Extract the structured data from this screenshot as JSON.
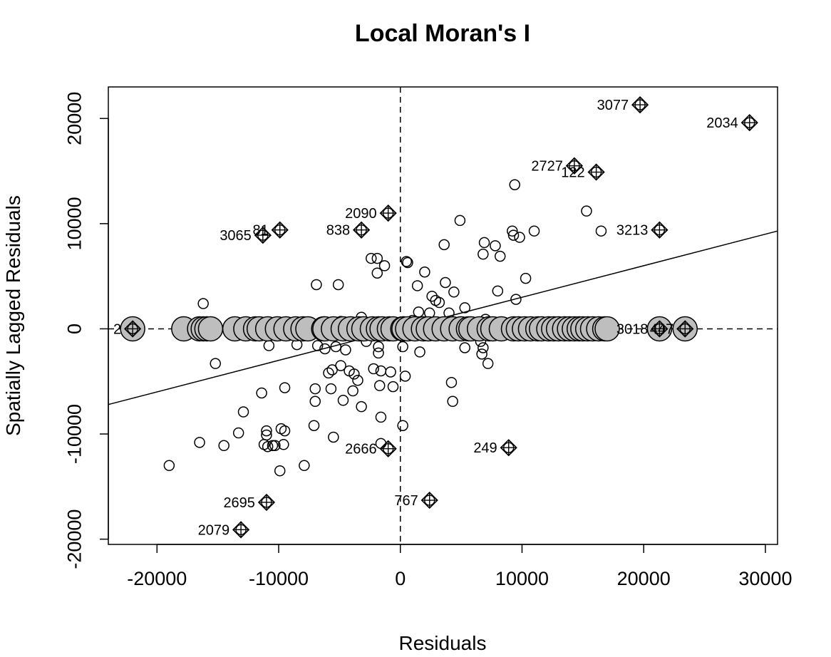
{
  "chart_data": {
    "type": "scatter",
    "title": "Local Moran's I",
    "xlabel": "Residuals",
    "ylabel": "Spatially Lagged Residuals",
    "xlim": [
      -24000,
      31000
    ],
    "ylim": [
      -20500,
      23000
    ],
    "x_ticks": [
      -20000,
      -10000,
      0,
      10000,
      20000,
      30000
    ],
    "x_tick_labels": [
      "-20000",
      "-10000",
      "0",
      "10000",
      "20000",
      "30000"
    ],
    "y_ticks": [
      -20000,
      -10000,
      0,
      10000,
      20000
    ],
    "y_tick_labels": [
      "-20000",
      "-10000",
      "0",
      "10000",
      "20000"
    ],
    "reference_lines": {
      "vertical_x": 0,
      "horizontal_y": 0,
      "style": "dashed"
    },
    "regression_line": {
      "intercept": 0,
      "slope": 0.3
    },
    "grid": false,
    "series": [
      {
        "marker": "open-circle",
        "points": [
          [
            -19000,
            -13000
          ],
          [
            -16500,
            -10800
          ],
          [
            -14500,
            -11100
          ],
          [
            -13300,
            -9900
          ],
          [
            -12900,
            -7900
          ],
          [
            -11400,
            -6100
          ],
          [
            -11200,
            -11000
          ],
          [
            -11000,
            -9700
          ],
          [
            -11000,
            -10100
          ],
          [
            -10900,
            -11200
          ],
          [
            -10500,
            -11100
          ],
          [
            -10300,
            -11100
          ],
          [
            -9900,
            -13500
          ],
          [
            -9800,
            -9500
          ],
          [
            -9600,
            -11000
          ],
          [
            -9500,
            -9700
          ],
          [
            -9500,
            -5600
          ],
          [
            -7900,
            -13000
          ],
          [
            -7100,
            -9200
          ],
          [
            -7000,
            -6900
          ],
          [
            -7000,
            -5700
          ],
          [
            -6800,
            -1600
          ],
          [
            -6900,
            4200
          ],
          [
            -5900,
            -4200
          ],
          [
            -5700,
            -5700
          ],
          [
            -5600,
            -3900
          ],
          [
            -5500,
            -10300
          ],
          [
            -5300,
            -1700
          ],
          [
            -5100,
            4200
          ],
          [
            -4900,
            -3500
          ],
          [
            -4700,
            -6800
          ],
          [
            -4500,
            -2000
          ],
          [
            -4200,
            -4000
          ],
          [
            -3900,
            -5900
          ],
          [
            -3800,
            -4300
          ],
          [
            -3500,
            -4900
          ],
          [
            -3200,
            -7400
          ],
          [
            -2800,
            -1200
          ],
          [
            -2400,
            6700
          ],
          [
            -2200,
            -3800
          ],
          [
            -1900,
            6700
          ],
          [
            -1900,
            5300
          ],
          [
            -1800,
            -2300
          ],
          [
            -1800,
            -1700
          ],
          [
            -1700,
            -5400
          ],
          [
            -1600,
            -4000
          ],
          [
            -1600,
            -8400
          ],
          [
            -1600,
            -10900
          ],
          [
            -1300,
            6000
          ],
          [
            -800,
            -4100
          ],
          [
            -600,
            -5500
          ],
          [
            200,
            -1700
          ],
          [
            200,
            -9200
          ],
          [
            400,
            -4500
          ],
          [
            500,
            6400
          ],
          [
            600,
            6300
          ],
          [
            1400,
            4100
          ],
          [
            1500,
            1600
          ],
          [
            1600,
            -2200
          ],
          [
            2000,
            5400
          ],
          [
            2400,
            1500
          ],
          [
            2600,
            3100
          ],
          [
            2900,
            2700
          ],
          [
            3200,
            2500
          ],
          [
            3600,
            8000
          ],
          [
            3700,
            4400
          ],
          [
            4000,
            1500
          ],
          [
            4200,
            -5100
          ],
          [
            4300,
            -6900
          ],
          [
            4400,
            3500
          ],
          [
            4900,
            10300
          ],
          [
            5300,
            2000
          ],
          [
            5300,
            -1800
          ],
          [
            6600,
            -1200
          ],
          [
            6700,
            -2400
          ],
          [
            6800,
            -1800
          ],
          [
            6800,
            7100
          ],
          [
            6900,
            8200
          ],
          [
            7200,
            -3300
          ],
          [
            7800,
            7900
          ],
          [
            8000,
            3600
          ],
          [
            8200,
            6900
          ],
          [
            9200,
            9300
          ],
          [
            9300,
            8900
          ],
          [
            9400,
            13700
          ],
          [
            9500,
            2800
          ],
          [
            9800,
            8700
          ],
          [
            10300,
            4800
          ],
          [
            11000,
            9300
          ],
          [
            15300,
            11200
          ],
          [
            16500,
            9300
          ],
          [
            -16200,
            2400
          ],
          [
            -15200,
            -3300
          ],
          [
            -10800,
            -1600
          ],
          [
            -8500,
            -1500
          ],
          [
            -6200,
            -1900
          ],
          [
            -4900,
            700
          ],
          [
            -3200,
            1100
          ],
          [
            -2000,
            400
          ],
          [
            -600,
            -300
          ],
          [
            1000,
            800
          ],
          [
            3500,
            600
          ],
          [
            6400,
            -200
          ],
          [
            7000,
            900
          ],
          [
            8000,
            -300
          ]
        ]
      },
      {
        "marker": "filled-large-circle",
        "y": 0,
        "x": [
          -22000,
          -17800,
          -16500,
          -16200,
          -15900,
          -15600,
          -13600,
          -12700,
          -11900,
          -11600,
          -10900,
          -10100,
          -9400,
          -8600,
          -8000,
          -7600,
          -6300,
          -6200,
          -5500,
          -4700,
          -4100,
          -3400,
          -3000,
          -2300,
          -1800,
          -1500,
          -900,
          -600,
          200,
          300,
          600,
          1200,
          1900,
          2300,
          2900,
          3600,
          4300,
          5000,
          5600,
          5800,
          6500,
          7300,
          7600,
          8300,
          9300,
          9700,
          10200,
          10700,
          11300,
          11600,
          12200,
          12600,
          13000,
          13500,
          13900,
          14300,
          14700,
          15000,
          15400,
          15800,
          16300,
          16800,
          17000,
          21300,
          23400
        ]
      },
      {
        "marker": "influential-diamond",
        "points": [
          [
            19700,
            21300,
            "3077"
          ],
          [
            28700,
            19600,
            "2034"
          ],
          [
            14300,
            15500,
            "2727"
          ],
          [
            16100,
            14900,
            "122"
          ],
          [
            -1000,
            11000,
            "2090"
          ],
          [
            -9900,
            9400,
            "81"
          ],
          [
            -3200,
            9400,
            "838"
          ],
          [
            -11300,
            8900,
            "3065"
          ],
          [
            21300,
            9400,
            "3213"
          ],
          [
            -22000,
            0,
            "2"
          ],
          [
            21300,
            0,
            "3018"
          ],
          [
            23400,
            0,
            "447"
          ],
          [
            -1000,
            -11400,
            "2666"
          ],
          [
            8900,
            -11300,
            "249"
          ],
          [
            -11000,
            -16500,
            "2695"
          ],
          [
            2400,
            -16300,
            "767"
          ],
          [
            -13100,
            -19100,
            "2079"
          ]
        ]
      }
    ]
  }
}
